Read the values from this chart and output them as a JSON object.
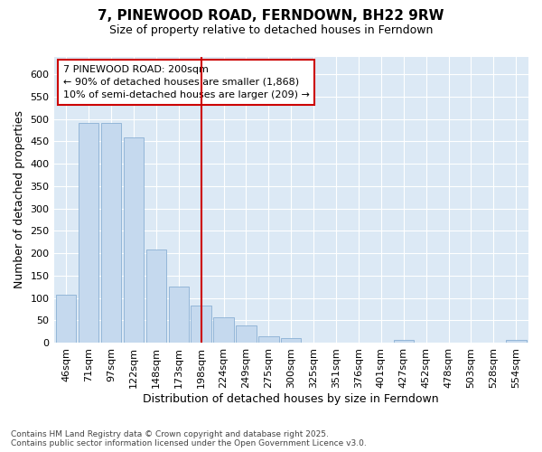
{
  "title": "7, PINEWOOD ROAD, FERNDOWN, BH22 9RW",
  "subtitle": "Size of property relative to detached houses in Ferndown",
  "xlabel": "Distribution of detached houses by size in Ferndown",
  "ylabel": "Number of detached properties",
  "categories": [
    "46sqm",
    "71sqm",
    "97sqm",
    "122sqm",
    "148sqm",
    "173sqm",
    "198sqm",
    "224sqm",
    "249sqm",
    "275sqm",
    "300sqm",
    "325sqm",
    "351sqm",
    "376sqm",
    "401sqm",
    "427sqm",
    "452sqm",
    "478sqm",
    "503sqm",
    "528sqm",
    "554sqm"
  ],
  "values": [
    107,
    492,
    492,
    460,
    209,
    125,
    82,
    57,
    38,
    15,
    11,
    0,
    0,
    0,
    0,
    5,
    0,
    0,
    0,
    0,
    5
  ],
  "bar_color": "#c5d9ee",
  "bar_edge_color": "#8ab0d4",
  "vline_index": 6,
  "vline_color": "#cc0000",
  "annotation_text": "7 PINEWOOD ROAD: 200sqm\n← 90% of detached houses are smaller (1,868)\n10% of semi-detached houses are larger (209) →",
  "annotation_box_fc": "#ffffff",
  "annotation_box_ec": "#cc0000",
  "footer_line1": "Contains HM Land Registry data © Crown copyright and database right 2025.",
  "footer_line2": "Contains public sector information licensed under the Open Government Licence v3.0.",
  "ylim": [
    0,
    640
  ],
  "yticks": [
    0,
    50,
    100,
    150,
    200,
    250,
    300,
    350,
    400,
    450,
    500,
    550,
    600
  ],
  "fig_bg": "#ffffff",
  "plot_bg": "#dce9f5",
  "title_fontsize": 11,
  "subtitle_fontsize": 9,
  "axis_label_fontsize": 9,
  "tick_fontsize": 8,
  "footer_fontsize": 6.5
}
